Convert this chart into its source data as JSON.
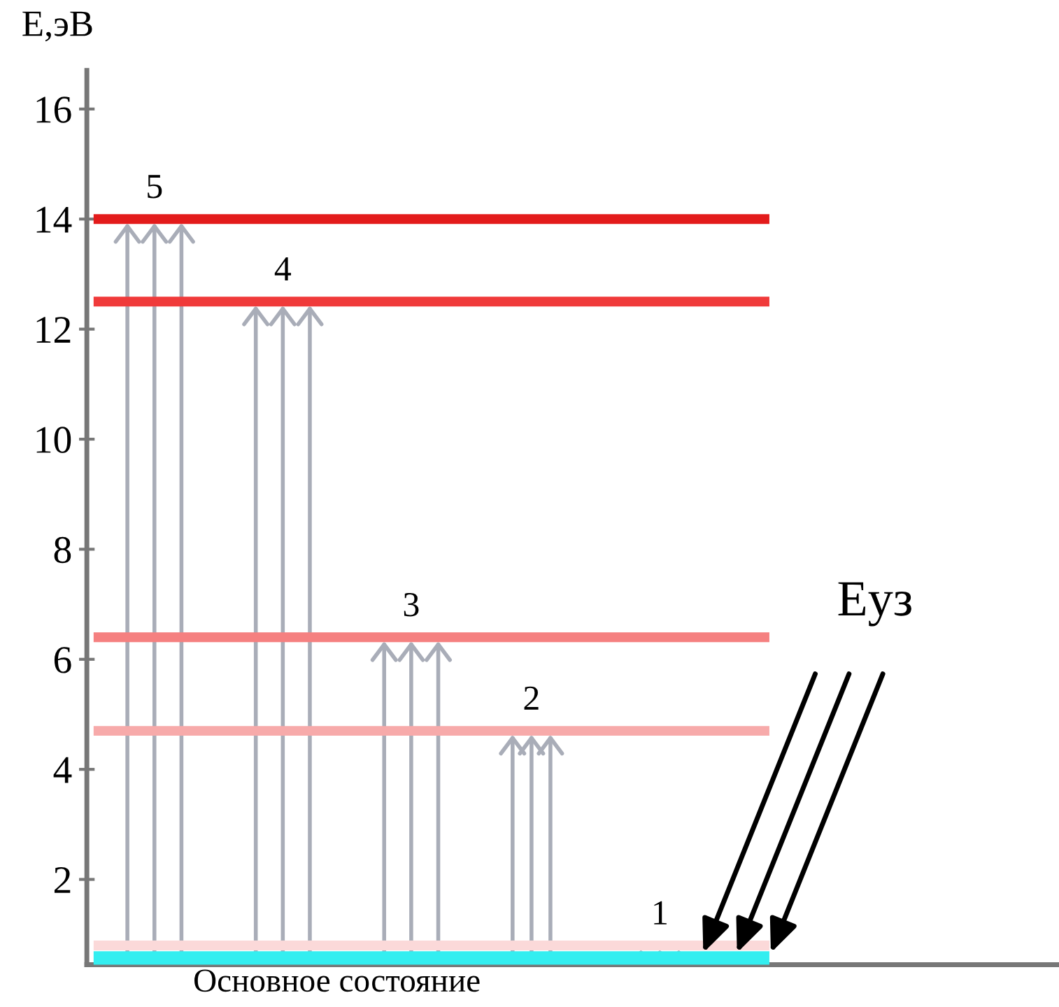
{
  "chart_data": {
    "type": "line",
    "ylabel": "E,эВ",
    "categories": [
      null,
      null
    ],
    "ylim": [
      0.45,
      16.7
    ],
    "yticks": [
      2,
      4,
      6,
      8,
      10,
      12,
      14,
      16
    ],
    "series": [
      {
        "name": "5",
        "color": "#e31b1b",
        "values": [
          14.0,
          14.0
        ]
      },
      {
        "name": "4",
        "color": "#f03a3a",
        "values": [
          12.5,
          12.5
        ]
      },
      {
        "name": "3",
        "color": "#f58080",
        "values": [
          6.4,
          6.4
        ]
      },
      {
        "name": "2",
        "color": "#f7aaaa",
        "values": [
          4.7,
          4.7
        ]
      },
      {
        "name": "1",
        "color": "#fbd9d9",
        "values": [
          0.8,
          0.8
        ]
      },
      {
        "name": "Основное состояние",
        "color": "#33eef0",
        "values": [
          0.5,
          0.5
        ]
      }
    ],
    "annotations": [
      "Eуз"
    ]
  }
}
